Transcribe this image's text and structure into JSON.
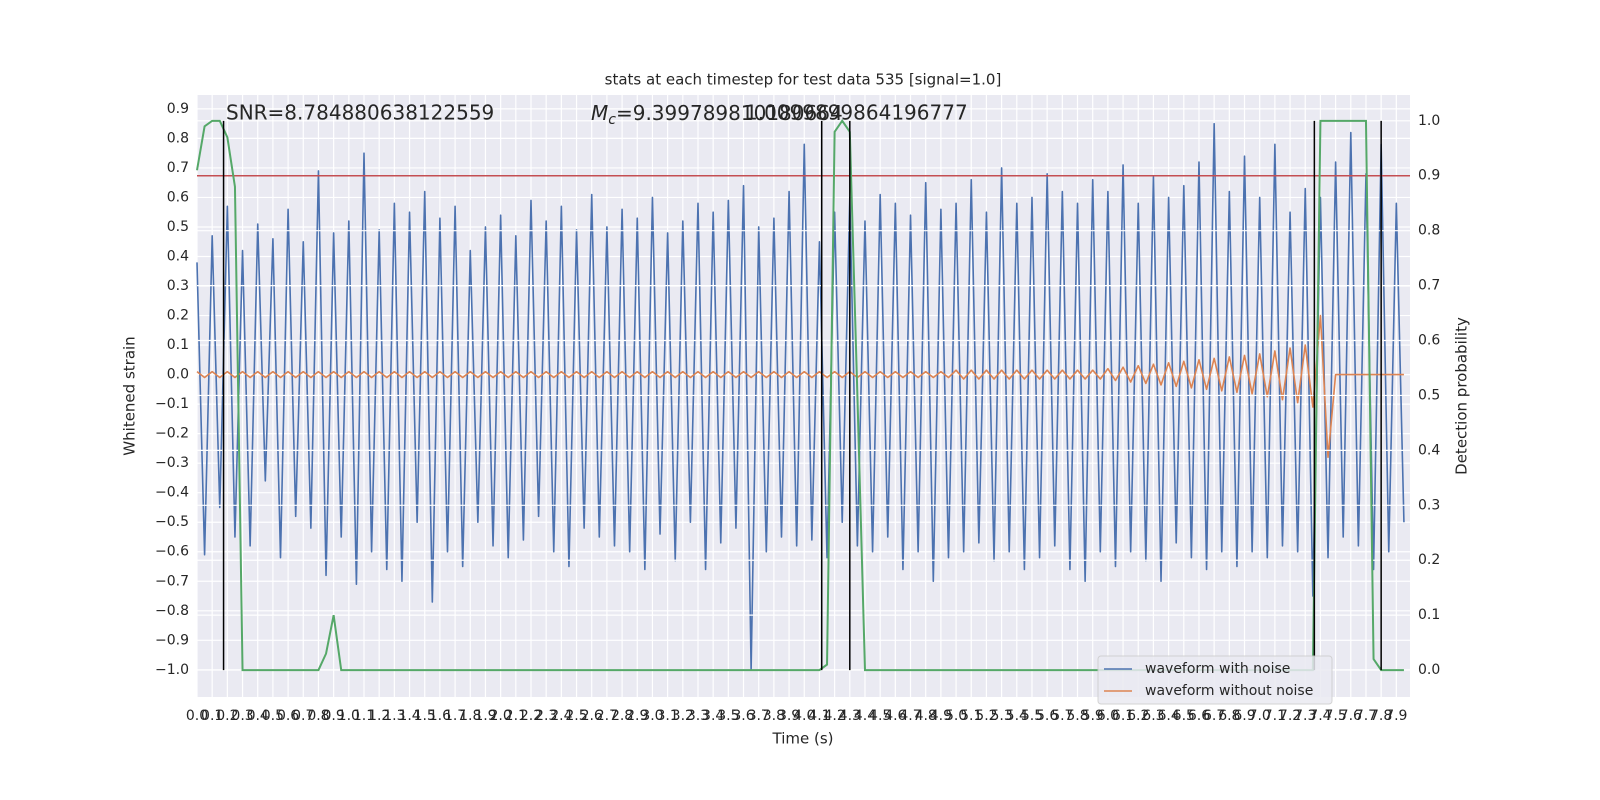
{
  "chart_data": {
    "type": "line",
    "title": "stats at each timestep for test data 535 [signal=1.0]",
    "x_label": "Time (s)",
    "y_label": "Whitened strain",
    "y2_label": "Detection probability",
    "annotations": [
      {
        "text": "SNR=8.784880638122559"
      },
      {
        "symbol": "M",
        "subscript": "c",
        "text": "=9.399789810180664"
      },
      {
        "text": "1.0099899864196777"
      }
    ],
    "x": [
      0,
      0.05,
      0.1,
      0.15,
      0.2,
      0.25,
      0.3,
      0.35,
      0.4,
      0.45,
      0.5,
      0.55,
      0.6,
      0.65,
      0.7,
      0.75,
      0.8,
      0.85,
      0.9,
      0.95,
      1,
      1.05,
      1.1,
      1.15,
      1.2,
      1.25,
      1.3,
      1.35,
      1.4,
      1.45,
      1.5,
      1.55,
      1.6,
      1.65,
      1.7,
      1.75,
      1.8,
      1.85,
      1.9,
      1.95,
      2,
      2.05,
      2.1,
      2.15,
      2.2,
      2.25,
      2.3,
      2.35,
      2.4,
      2.45,
      2.5,
      2.55,
      2.6,
      2.65,
      2.7,
      2.75,
      2.8,
      2.85,
      2.9,
      2.95,
      3,
      3.05,
      3.1,
      3.15,
      3.2,
      3.25,
      3.3,
      3.35,
      3.4,
      3.45,
      3.5,
      3.55,
      3.6,
      3.65,
      3.7,
      3.75,
      3.8,
      3.85,
      3.9,
      3.95,
      4,
      4.05,
      4.1,
      4.15,
      4.2,
      4.25,
      4.3,
      4.35,
      4.4,
      4.45,
      4.5,
      4.55,
      4.6,
      4.65,
      4.7,
      4.75,
      4.8,
      4.85,
      4.9,
      4.95,
      5,
      5.05,
      5.1,
      5.15,
      5.2,
      5.25,
      5.3,
      5.35,
      5.4,
      5.45,
      5.5,
      5.55,
      5.6,
      5.65,
      5.7,
      5.75,
      5.8,
      5.85,
      5.9,
      5.95,
      6,
      6.05,
      6.1,
      6.15,
      6.2,
      6.25,
      6.3,
      6.35,
      6.4,
      6.45,
      6.5,
      6.55,
      6.6,
      6.65,
      6.7,
      6.75,
      6.8,
      6.85,
      6.9,
      6.95,
      7,
      7.05,
      7.1,
      7.15,
      7.2,
      7.25,
      7.3,
      7.35,
      7.4,
      7.45,
      7.5,
      7.55,
      7.6,
      7.65,
      7.7,
      7.75,
      7.8,
      7.85,
      7.9,
      7.95
    ],
    "series": [
      {
        "name": "waveform with noise",
        "color": "#4c72b0",
        "values": [
          0.38,
          -0.61,
          0.47,
          -0.45,
          0.57,
          -0.55,
          0.42,
          -0.58,
          0.51,
          -0.36,
          0.46,
          -0.62,
          0.56,
          -0.48,
          0.45,
          -0.52,
          0.69,
          -0.68,
          0.48,
          -0.55,
          0.52,
          -0.71,
          0.75,
          -0.6,
          0.49,
          -0.66,
          0.58,
          -0.7,
          0.55,
          -0.5,
          0.62,
          -0.77,
          0.53,
          -0.6,
          0.57,
          -0.65,
          0.42,
          -0.5,
          0.5,
          -0.58,
          0.54,
          -0.62,
          0.47,
          -0.56,
          0.59,
          -0.48,
          0.52,
          -0.6,
          0.57,
          -0.65,
          0.49,
          -0.52,
          0.61,
          -0.55,
          0.5,
          -0.58,
          0.56,
          -0.6,
          0.53,
          -0.66,
          0.6,
          -0.54,
          0.48,
          -0.63,
          0.52,
          -0.5,
          0.58,
          -0.66,
          0.55,
          -0.57,
          0.59,
          -0.52,
          0.64,
          -1.0,
          0.5,
          -0.6,
          0.53,
          -0.55,
          0.62,
          -0.58,
          0.78,
          -0.56,
          0.45,
          -0.62,
          0.55,
          -0.5,
          0.6,
          -0.58,
          0.52,
          -0.6,
          0.61,
          -0.55,
          0.58,
          -0.66,
          0.54,
          -0.6,
          0.65,
          -0.7,
          0.56,
          -0.62,
          0.58,
          -0.6,
          0.66,
          -0.57,
          0.55,
          -0.63,
          0.7,
          -0.6,
          0.58,
          -0.66,
          0.6,
          -0.62,
          0.68,
          -0.58,
          0.62,
          -0.66,
          0.58,
          -0.7,
          0.66,
          -0.6,
          0.62,
          -0.65,
          0.71,
          -0.6,
          0.58,
          -0.63,
          0.67,
          -0.7,
          0.6,
          -0.57,
          0.64,
          -0.62,
          0.72,
          -0.66,
          0.85,
          -0.6,
          0.62,
          -0.65,
          0.74,
          -0.6,
          0.6,
          -0.62,
          0.78,
          -0.58,
          0.55,
          -0.6,
          0.63,
          -0.75,
          0.6,
          -0.62,
          0.72,
          -0.55,
          0.82,
          -0.58,
          0.68,
          -0.66,
          0.78,
          -0.6,
          0.58,
          -0.5
        ]
      },
      {
        "name": "waveform without noise",
        "color": "#dd8452",
        "values": [
          0.01,
          -0.01,
          0.01,
          -0.01,
          0.01,
          -0.01,
          0.01,
          -0.01,
          0.01,
          -0.01,
          0.01,
          -0.01,
          0.01,
          -0.01,
          0.01,
          -0.01,
          0.01,
          -0.01,
          0.01,
          -0.01,
          0.01,
          -0.01,
          0.01,
          -0.01,
          0.01,
          -0.01,
          0.01,
          -0.01,
          0.01,
          -0.01,
          0.01,
          -0.01,
          0.01,
          -0.01,
          0.01,
          -0.01,
          0.01,
          -0.01,
          0.01,
          -0.01,
          0.01,
          -0.01,
          0.01,
          -0.01,
          0.01,
          -0.01,
          0.01,
          -0.01,
          0.01,
          -0.01,
          0.01,
          -0.01,
          0.01,
          -0.01,
          0.01,
          -0.01,
          0.01,
          -0.01,
          0.01,
          -0.01,
          0.01,
          -0.01,
          0.01,
          -0.01,
          0.01,
          -0.01,
          0.01,
          -0.01,
          0.01,
          -0.01,
          0.01,
          -0.01,
          0.01,
          -0.01,
          0.01,
          -0.01,
          0.01,
          -0.01,
          0.01,
          -0.01,
          0.01,
          -0.01,
          0.01,
          -0.01,
          0.01,
          -0.01,
          0.01,
          -0.01,
          0.01,
          -0.01,
          0.01,
          -0.01,
          0.01,
          -0.01,
          0.01,
          -0.01,
          0.01,
          -0.01,
          0.01,
          -0.01,
          0.015,
          -0.015,
          0.015,
          -0.015,
          0.015,
          -0.015,
          0.015,
          -0.015,
          0.015,
          -0.015,
          0.015,
          -0.015,
          0.015,
          -0.015,
          0.015,
          -0.015,
          0.015,
          -0.015,
          0.015,
          -0.015,
          0.02,
          -0.02,
          0.025,
          -0.025,
          0.03,
          -0.03,
          0.035,
          -0.035,
          0.04,
          -0.04,
          0.045,
          -0.045,
          0.05,
          -0.05,
          0.055,
          -0.055,
          0.06,
          -0.06,
          0.065,
          -0.065,
          0.07,
          -0.075,
          0.08,
          -0.085,
          0.09,
          -0.095,
          0.1,
          -0.11,
          0.2,
          -0.28,
          0,
          0,
          0,
          0,
          0,
          0,
          0,
          0,
          0,
          0
        ]
      }
    ],
    "detection": {
      "color": "#55a868",
      "x": [
        0,
        0.05,
        0.1,
        0.15,
        0.2,
        0.25,
        0.3,
        0.8,
        0.85,
        0.9,
        0.95,
        4.1,
        4.15,
        4.2,
        4.25,
        4.3,
        4.35,
        4.4,
        7.35,
        7.4,
        7.7,
        7.75,
        7.8,
        7.95
      ],
      "values": [
        0.91,
        0.99,
        1.0,
        1.0,
        0.97,
        0.88,
        0.0,
        0.0,
        0.03,
        0.1,
        0.0,
        0.0,
        0.01,
        0.98,
        1.0,
        0.98,
        0.5,
        0.0,
        0.0,
        1.0,
        1.0,
        0.02,
        0.0,
        0.0
      ]
    },
    "threshold": {
      "value": 0.9,
      "color": "#c44e52"
    },
    "markers": {
      "x": [
        0.175,
        4.115,
        4.3,
        7.36,
        7.8
      ],
      "color": "#000000"
    },
    "xlim": [
      0,
      7.99
    ],
    "ylim": [
      -1.092,
      0.947
    ],
    "y2lim": [
      -0.049,
      1.047
    ],
    "xticks": [
      {
        "value": 0,
        "label": "0.0"
      },
      0.1,
      0.2,
      0.3,
      0.4,
      0.5,
      0.6,
      0.7,
      0.8,
      0.9,
      {
        "value": 1,
        "label": "1.0"
      },
      1.1,
      1.2,
      1.3,
      1.4,
      1.5,
      1.6,
      1.7,
      1.8,
      1.9,
      {
        "value": 2,
        "label": "2.0"
      },
      2.1,
      2.2,
      2.3,
      2.4,
      2.5,
      2.6,
      2.7,
      2.8,
      2.9,
      {
        "value": 3,
        "label": "3.0"
      },
      3.1,
      3.2,
      3.3,
      3.4,
      3.5,
      3.6,
      3.7,
      3.8,
      3.9,
      {
        "value": 4,
        "label": "4.0"
      },
      4.1,
      4.2,
      4.3,
      4.4,
      4.5,
      4.6,
      4.7,
      4.8,
      4.9,
      {
        "value": 5,
        "label": "5.0"
      },
      5.1,
      5.2,
      5.3,
      5.4,
      5.5,
      5.6,
      5.7,
      5.8,
      5.9,
      {
        "value": 6,
        "label": "6.0"
      },
      6.1,
      6.2,
      6.3,
      6.4,
      6.5,
      6.6,
      6.7,
      6.8,
      6.9,
      {
        "value": 7,
        "label": "7.0"
      },
      7.1,
      7.2,
      7.3,
      7.4,
      7.5,
      7.6,
      7.7,
      7.8,
      7.9
    ],
    "yticks": [
      {
        "value": -1.0,
        "label": "−1.0"
      },
      {
        "value": -0.9,
        "label": "−0.9"
      },
      {
        "value": -0.8,
        "label": "−0.8"
      },
      {
        "value": -0.7,
        "label": "−0.7"
      },
      {
        "value": -0.6,
        "label": "−0.6"
      },
      {
        "value": -0.5,
        "label": "−0.5"
      },
      {
        "value": -0.4,
        "label": "−0.4"
      },
      {
        "value": -0.3,
        "label": "−0.3"
      },
      {
        "value": -0.2,
        "label": "−0.2"
      },
      {
        "value": -0.1,
        "label": "−0.1"
      },
      {
        "value": 0,
        "label": "0.0"
      },
      0.1,
      0.2,
      0.3,
      0.4,
      0.5,
      0.6,
      0.7,
      0.8,
      0.9
    ],
    "y2ticks": [
      {
        "value": 0,
        "label": "0.0"
      },
      0.1,
      0.2,
      0.3,
      0.4,
      0.5,
      0.6,
      0.7,
      0.8,
      0.9,
      {
        "value": 1,
        "label": "1.0"
      }
    ],
    "grid": true,
    "legend": "lower right",
    "background": "#eaeaf2"
  }
}
